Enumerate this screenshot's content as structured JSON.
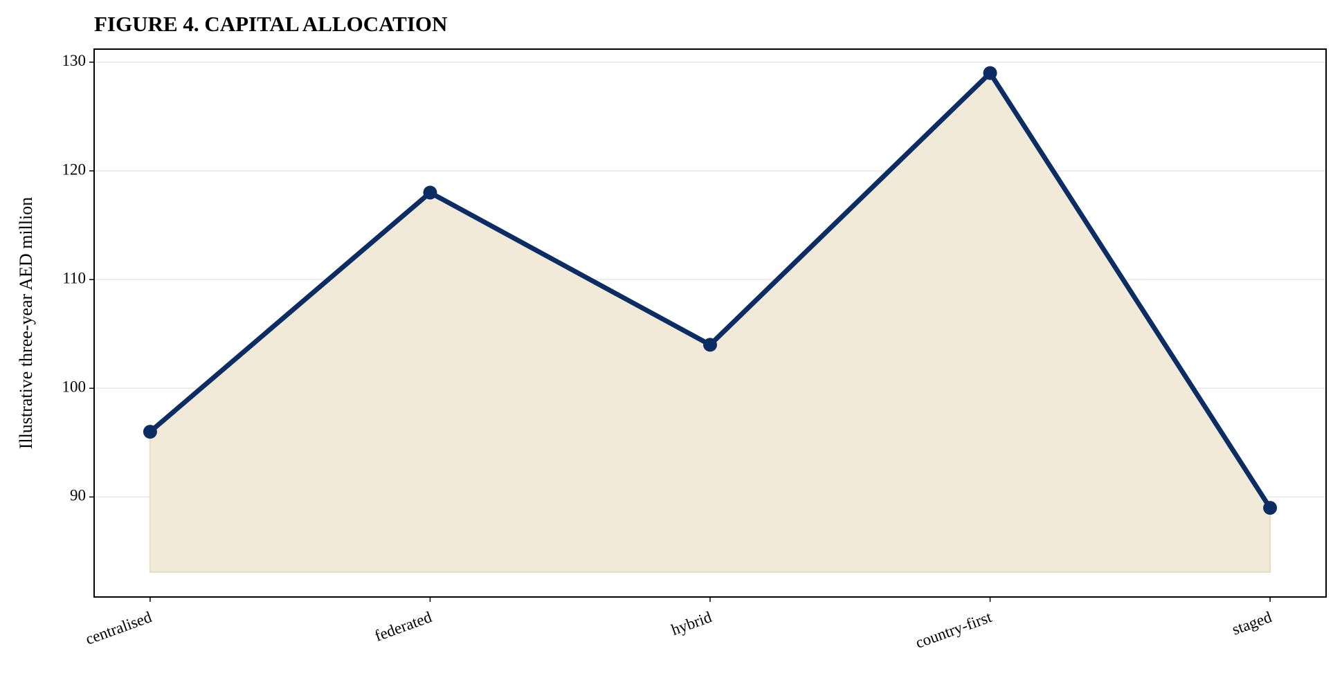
{
  "chart_data": {
    "type": "line",
    "title": "FIGURE 4. CAPITAL ALLOCATION",
    "y_label": "Illustrative three-year AED million",
    "categories": [
      "centralised",
      "federated",
      "hybrid",
      "country-first",
      "staged"
    ],
    "values": [
      96,
      118,
      104,
      129,
      89
    ],
    "color": "#0b2d63",
    "fill_color": "#f2ead9",
    "ylim": [
      80.8,
      131.2
    ],
    "yticks": [
      90,
      100,
      110,
      120,
      130
    ],
    "grid": true
  }
}
